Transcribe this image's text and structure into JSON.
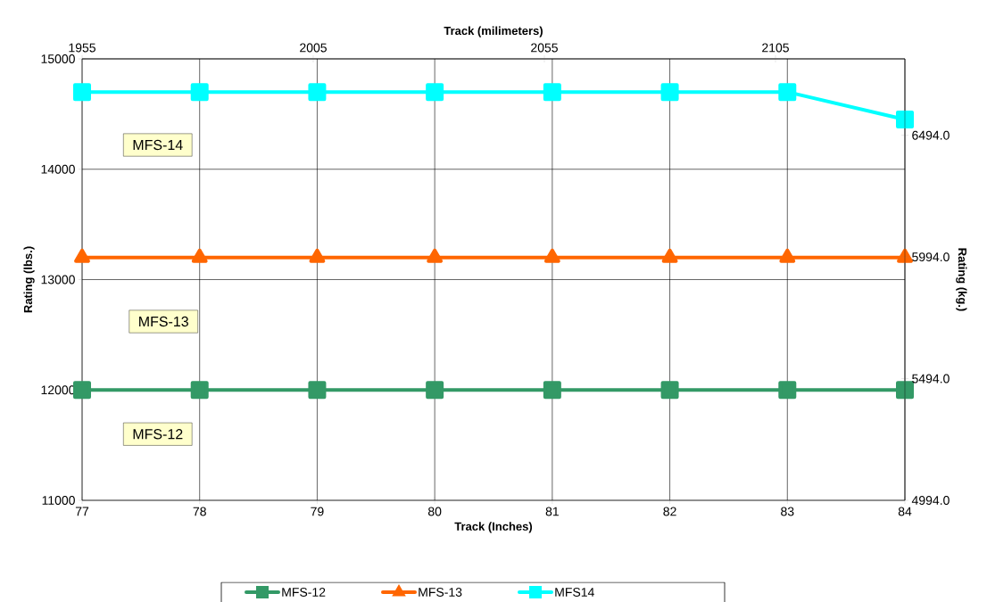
{
  "chart_data": {
    "type": "line",
    "xlabel": "Track (Inches)",
    "ylabel": "Rating (lbs.)",
    "y2label": "Rating (kg.)",
    "x2label": "Track (milimeters)",
    "x": [
      77,
      78,
      79,
      80,
      81,
      82,
      83,
      84
    ],
    "series": [
      {
        "name": "MFS-12",
        "color": "#339966",
        "marker": "square",
        "values": [
          12000,
          12000,
          12000,
          12000,
          12000,
          12000,
          12000,
          12000
        ]
      },
      {
        "name": "MFS-13",
        "color": "#ff6600",
        "marker": "triangle",
        "values": [
          13200,
          13200,
          13200,
          13200,
          13200,
          13200,
          13200,
          13200
        ]
      },
      {
        "name": "MFS14",
        "color": "#00ffff",
        "marker": "square",
        "values": [
          14700,
          14700,
          14700,
          14700,
          14700,
          14700,
          14700,
          14450
        ]
      }
    ],
    "xlim": [
      77,
      84
    ],
    "xticks": [
      77,
      78,
      79,
      80,
      81,
      82,
      83,
      84
    ],
    "ylim": [
      11000,
      15000
    ],
    "yticks": [
      11000,
      12000,
      13000,
      14000,
      15000
    ],
    "x2lim": [
      1955,
      2133
    ],
    "x2ticks": [
      1955,
      2005,
      2055,
      2105
    ],
    "y2lim": [
      4994,
      6808
    ],
    "y2ticks": [
      {
        "value": 4994,
        "label": "4994.0"
      },
      {
        "value": 5494,
        "label": "5494.0"
      },
      {
        "value": 5994,
        "label": "5994.0"
      },
      {
        "value": 6494,
        "label": "6494.0"
      }
    ],
    "annotations": [
      "MFS-14",
      "MFS-13",
      "MFS-12"
    ],
    "grid": true,
    "legend": "bottom",
    "line_style": "solid"
  }
}
